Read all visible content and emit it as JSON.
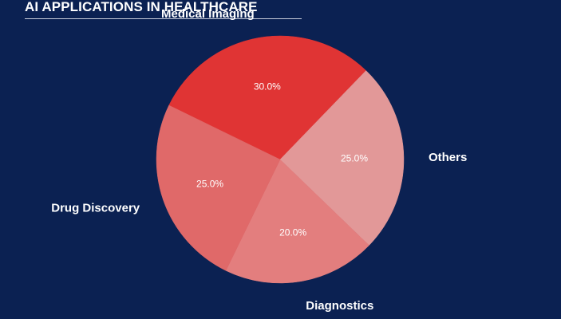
{
  "chart_data": {
    "type": "pie",
    "title": "AI APPLICATIONS IN HEALTHCARE",
    "slices": [
      {
        "label": "Medical Imaging",
        "value": 30.0,
        "display": "30.0%",
        "color": "#e03434"
      },
      {
        "label": "Others",
        "value": 25.0,
        "display": "25.0%",
        "color": "#e29898"
      },
      {
        "label": "Diagnostics",
        "value": 20.0,
        "display": "20.0%",
        "color": "#e37e7e"
      },
      {
        "label": "Drug Discovery",
        "value": 25.0,
        "display": "25.0%",
        "color": "#e06969"
      }
    ],
    "start_angle_deg": -64,
    "direction": "clockwise"
  }
}
